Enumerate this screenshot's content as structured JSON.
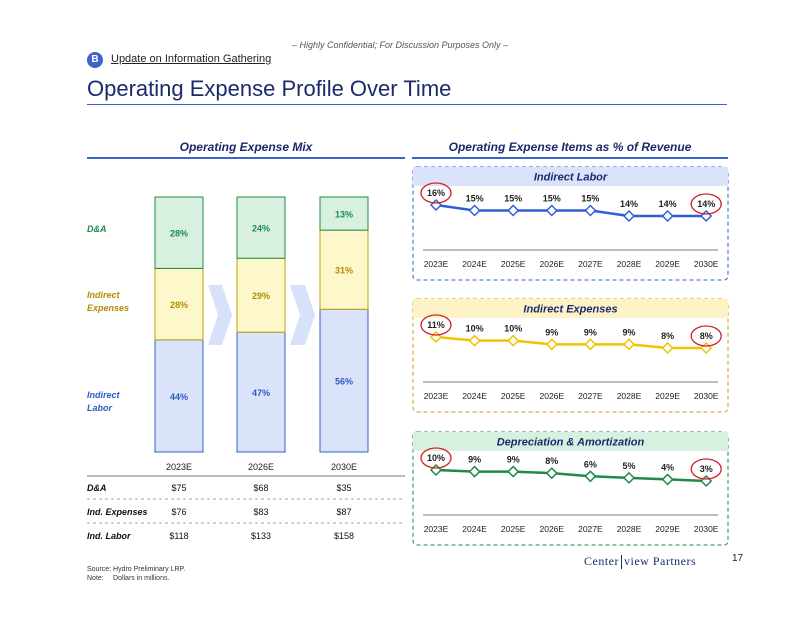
{
  "header": {
    "confidential": "– Highly Confidential; For Discussion Purposes Only –",
    "badge": "B",
    "section": "Update on Information Gathering",
    "title": "Operating Expense Profile Over Time"
  },
  "colors": {
    "navy": "#1b2a6b",
    "accent": "#3e63c9",
    "labor_fill": "#dbe3fb",
    "labor_text": "#2f58c7",
    "indirect_fill": "#fdf7cc",
    "indirect_text": "#b48b00",
    "da_fill": "#d8f0e0",
    "da_text": "#1e8a4c",
    "labor_line": "#2f5fd6",
    "indirect_line": "#f2c200",
    "da_line": "#1f8a48",
    "highlight": "#d22027"
  },
  "chart_data": [
    {
      "type": "bar",
      "stacked": true,
      "title": "Operating Expense Mix",
      "categories": [
        "2023E",
        "2026E",
        "2030E"
      ],
      "series": [
        {
          "name": "Indirect Labor",
          "label": "Indirect\nLabor",
          "values": [
            44,
            47,
            56
          ],
          "labels": [
            "44%",
            "47%",
            "56%"
          ]
        },
        {
          "name": "Indirect Expenses",
          "label": "Indirect\nExpenses",
          "values": [
            28,
            29,
            31
          ],
          "labels": [
            "28%",
            "29%",
            "31%"
          ]
        },
        {
          "name": "D&A",
          "label": "D&A",
          "values": [
            28,
            24,
            13
          ],
          "labels": [
            "28%",
            "24%",
            "13%"
          ]
        }
      ],
      "ylim": [
        0,
        100
      ]
    },
    {
      "type": "line",
      "title": "Indirect Labor",
      "x": [
        "2023E",
        "2024E",
        "2025E",
        "2026E",
        "2027E",
        "2028E",
        "2029E",
        "2030E"
      ],
      "values": [
        16,
        15,
        15,
        15,
        15,
        14,
        14,
        14
      ],
      "labels": [
        "16%",
        "15%",
        "15%",
        "15%",
        "15%",
        "14%",
        "14%",
        "14%"
      ],
      "circled": [
        0,
        7
      ]
    },
    {
      "type": "line",
      "title": "Indirect Expenses",
      "x": [
        "2023E",
        "2024E",
        "2025E",
        "2026E",
        "2027E",
        "2028E",
        "2029E",
        "2030E"
      ],
      "values": [
        11,
        10,
        10,
        9,
        9,
        9,
        8,
        8
      ],
      "labels": [
        "11%",
        "10%",
        "10%",
        "9%",
        "9%",
        "9%",
        "8%",
        "8%"
      ],
      "circled": [
        0,
        7
      ]
    },
    {
      "type": "line",
      "title": "Depreciation & Amortization",
      "x": [
        "2023E",
        "2024E",
        "2025E",
        "2026E",
        "2027E",
        "2028E",
        "2029E",
        "2030E"
      ],
      "values": [
        10,
        9,
        9,
        8,
        6,
        5,
        4,
        3
      ],
      "labels": [
        "10%",
        "9%",
        "9%",
        "8%",
        "6%",
        "5%",
        "4%",
        "3%"
      ],
      "circled": [
        0,
        7
      ]
    }
  ],
  "mix_panel": {
    "title": "Operating Expense Mix"
  },
  "ratio_panel": {
    "title": "Operating Expense Items as % of Revenue"
  },
  "table": {
    "rows": [
      {
        "label": "D&A",
        "values": [
          "$75",
          "$68",
          "$35"
        ]
      },
      {
        "label": "Ind. Expenses",
        "values": [
          "$76",
          "$83",
          "$87"
        ]
      },
      {
        "label": "Ind. Labor",
        "values": [
          "$118",
          "$133",
          "$158"
        ]
      }
    ]
  },
  "footer": {
    "source_label": "Source:",
    "source_text": "Hydro Preliminary LRP.",
    "note_label": "Note:",
    "note_text": "Dollars in millions."
  },
  "logo": {
    "left": "Center",
    "right": "view Partners"
  },
  "page_number": "17"
}
